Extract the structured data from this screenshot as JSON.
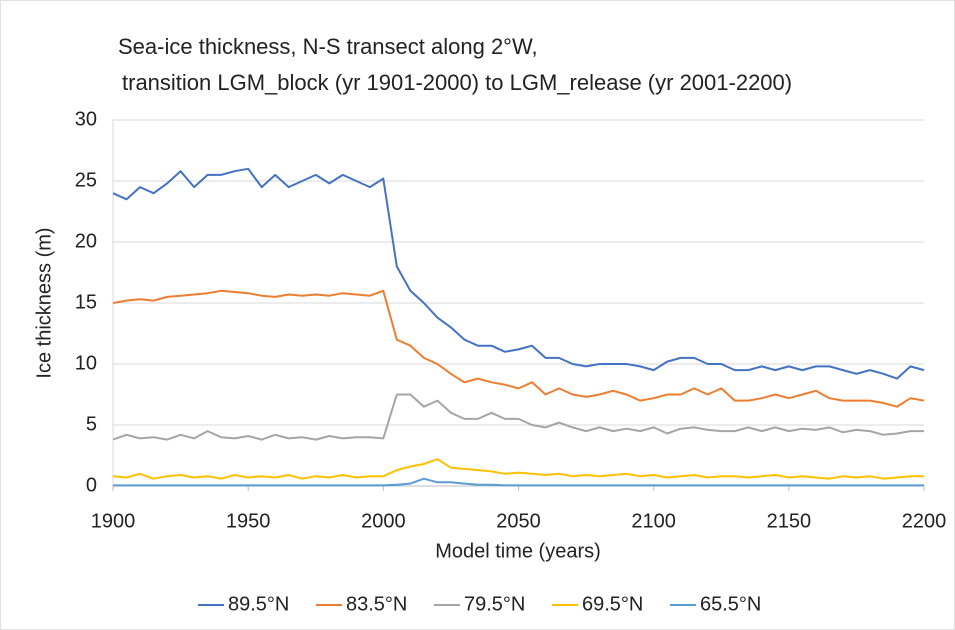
{
  "chart_data": {
    "type": "line",
    "title": [
      "Sea-ice thickness, N-S transect along 2°W,",
      "transition LGM_block (yr 1901-2000) to LGM_release (yr 2001-2200)"
    ],
    "x_label": "Model time (years)",
    "y_label": "Ice thickness (m)",
    "x": [
      1900,
      1905,
      1910,
      1915,
      1920,
      1925,
      1930,
      1935,
      1940,
      1945,
      1950,
      1955,
      1960,
      1965,
      1970,
      1975,
      1980,
      1985,
      1990,
      1995,
      2000,
      2005,
      2010,
      2015,
      2020,
      2025,
      2030,
      2035,
      2040,
      2045,
      2050,
      2055,
      2060,
      2065,
      2070,
      2075,
      2080,
      2085,
      2090,
      2095,
      2100,
      2105,
      2110,
      2115,
      2120,
      2125,
      2130,
      2135,
      2140,
      2145,
      2150,
      2155,
      2160,
      2165,
      2170,
      2175,
      2180,
      2185,
      2190,
      2195,
      2200
    ],
    "series": [
      {
        "name": "89.5°N",
        "color": "#4472c4",
        "values": [
          24,
          23.5,
          24.5,
          24,
          24.8,
          25.8,
          24.5,
          25.5,
          25.5,
          25.8,
          26,
          24.5,
          25.5,
          24.5,
          25,
          25.5,
          24.8,
          25.5,
          25,
          24.5,
          25.2,
          18,
          16,
          15,
          13.8,
          13,
          12,
          11.5,
          11.5,
          11,
          11.2,
          11.5,
          10.5,
          10.5,
          10,
          9.8,
          10,
          10,
          10,
          9.8,
          9.5,
          10.2,
          10.5,
          10.5,
          10,
          10,
          9.5,
          9.5,
          9.8,
          9.5,
          9.8,
          9.5,
          9.8,
          9.8,
          9.5,
          9.2,
          9.5,
          9.2,
          8.8,
          9.8,
          9.5
        ]
      },
      {
        "name": "83.5°N",
        "color": "#ed7d31",
        "values": [
          15,
          15.2,
          15.3,
          15.2,
          15.5,
          15.6,
          15.7,
          15.8,
          16,
          15.9,
          15.8,
          15.6,
          15.5,
          15.7,
          15.6,
          15.7,
          15.6,
          15.8,
          15.7,
          15.6,
          16,
          12,
          11.5,
          10.5,
          10,
          9.2,
          8.5,
          8.8,
          8.5,
          8.3,
          8,
          8.5,
          7.5,
          8,
          7.5,
          7.3,
          7.5,
          7.8,
          7.5,
          7,
          7.2,
          7.5,
          7.5,
          8,
          7.5,
          8,
          7,
          7,
          7.2,
          7.5,
          7.2,
          7.5,
          7.8,
          7.2,
          7,
          7,
          7,
          6.8,
          6.5,
          7.2,
          7
        ]
      },
      {
        "name": "79.5°N",
        "color": "#a5a5a5",
        "values": [
          3.8,
          4.2,
          3.9,
          4,
          3.8,
          4.2,
          3.9,
          4.5,
          4,
          3.9,
          4.1,
          3.8,
          4.2,
          3.9,
          4,
          3.8,
          4.1,
          3.9,
          4,
          4,
          3.9,
          7.5,
          7.5,
          6.5,
          7,
          6,
          5.5,
          5.5,
          6,
          5.5,
          5.5,
          5,
          4.8,
          5.2,
          4.8,
          4.5,
          4.8,
          4.5,
          4.7,
          4.5,
          4.8,
          4.3,
          4.7,
          4.8,
          4.6,
          4.5,
          4.5,
          4.8,
          4.5,
          4.8,
          4.5,
          4.7,
          4.6,
          4.8,
          4.4,
          4.6,
          4.5,
          4.2,
          4.3,
          4.5,
          4.5
        ]
      },
      {
        "name": "69.5°N",
        "color": "#ffc000",
        "values": [
          0.8,
          0.7,
          1.0,
          0.6,
          0.8,
          0.9,
          0.7,
          0.8,
          0.6,
          0.9,
          0.7,
          0.8,
          0.7,
          0.9,
          0.6,
          0.8,
          0.7,
          0.9,
          0.7,
          0.8,
          0.8,
          1.3,
          1.6,
          1.8,
          2.2,
          1.5,
          1.4,
          1.3,
          1.2,
          1.0,
          1.1,
          1.0,
          0.9,
          1.0,
          0.8,
          0.9,
          0.8,
          0.9,
          1.0,
          0.8,
          0.9,
          0.7,
          0.8,
          0.9,
          0.7,
          0.8,
          0.8,
          0.7,
          0.8,
          0.9,
          0.7,
          0.8,
          0.7,
          0.6,
          0.8,
          0.7,
          0.8,
          0.6,
          0.7,
          0.8,
          0.8
        ]
      },
      {
        "name": "65.5°N",
        "color": "#5b9bd5",
        "values": [
          0.05,
          0.05,
          0.05,
          0.05,
          0.05,
          0.05,
          0.05,
          0.05,
          0.05,
          0.05,
          0.05,
          0.05,
          0.05,
          0.05,
          0.05,
          0.05,
          0.05,
          0.05,
          0.05,
          0.05,
          0.05,
          0.1,
          0.2,
          0.6,
          0.3,
          0.3,
          0.2,
          0.1,
          0.1,
          0.05,
          0.05,
          0.05,
          0.05,
          0.05,
          0.05,
          0.05,
          0.05,
          0.05,
          0.05,
          0.05,
          0.05,
          0.05,
          0.05,
          0.05,
          0.05,
          0.05,
          0.05,
          0.05,
          0.05,
          0.05,
          0.05,
          0.05,
          0.05,
          0.05,
          0.05,
          0.05,
          0.05,
          0.05,
          0.05,
          0.05,
          0.05
        ]
      }
    ],
    "xlim": [
      1900,
      2200
    ],
    "xticks": [
      1900,
      1950,
      2000,
      2050,
      2100,
      2150,
      2200
    ],
    "ylim": [
      0,
      30
    ],
    "yticks": [
      0,
      5,
      10,
      15,
      20,
      25,
      30
    ],
    "grid": true
  }
}
